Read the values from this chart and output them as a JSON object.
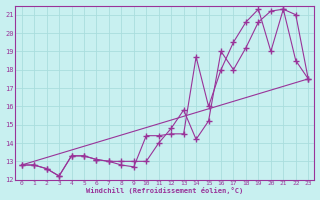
{
  "xlabel": "Windchill (Refroidissement éolien,°C)",
  "background_color": "#c8f0f0",
  "line_color": "#993399",
  "grid_color": "#aadddd",
  "xlim": [
    -0.5,
    23.5
  ],
  "ylim": [
    12,
    21.5
  ],
  "xticks": [
    0,
    1,
    2,
    3,
    4,
    5,
    6,
    7,
    8,
    9,
    10,
    11,
    12,
    13,
    14,
    15,
    16,
    17,
    18,
    19,
    20,
    21,
    22,
    23
  ],
  "yticks": [
    12,
    13,
    14,
    15,
    16,
    17,
    18,
    19,
    20,
    21
  ],
  "line1_x": [
    0,
    1,
    2,
    3,
    4,
    5,
    6,
    7,
    8,
    9,
    10,
    11,
    12,
    13,
    14,
    15,
    16,
    17,
    18,
    19,
    20,
    21,
    22,
    23
  ],
  "line1_y": [
    12.8,
    12.8,
    12.6,
    12.2,
    13.3,
    13.3,
    13.1,
    13.0,
    12.8,
    12.7,
    14.4,
    14.4,
    14.5,
    14.5,
    18.7,
    16.0,
    18.0,
    19.5,
    20.6,
    21.3,
    19.0,
    21.3,
    21.0,
    17.5
  ],
  "line2_x": [
    0,
    1,
    2,
    3,
    4,
    5,
    6,
    7,
    8,
    9,
    10,
    11,
    12,
    13,
    14,
    15,
    16,
    17,
    18,
    19,
    20,
    21,
    22,
    23
  ],
  "line2_y": [
    12.8,
    12.8,
    12.6,
    12.2,
    13.3,
    13.3,
    13.1,
    13.0,
    13.0,
    13.0,
    13.0,
    14.0,
    14.8,
    15.8,
    14.2,
    15.2,
    19.0,
    18.0,
    19.2,
    20.6,
    21.2,
    21.3,
    18.5,
    17.5
  ],
  "line3_x": [
    0,
    23
  ],
  "line3_y": [
    12.8,
    17.5
  ]
}
